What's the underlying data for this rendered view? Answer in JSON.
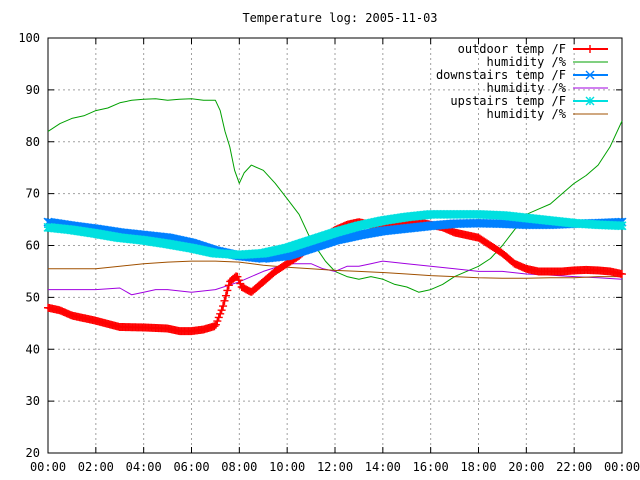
{
  "chart_data": {
    "type": "line",
    "title": "Temperature log: 2005-11-03",
    "xlabel": "",
    "ylabel": "",
    "xlim": [
      0,
      24
    ],
    "ylim": [
      20,
      100
    ],
    "grid": true,
    "legend_position": "top-right",
    "x_ticks": [
      "00:00",
      "02:00",
      "04:00",
      "06:00",
      "08:00",
      "10:00",
      "12:00",
      "14:00",
      "16:00",
      "18:00",
      "20:00",
      "22:00",
      "00:00"
    ],
    "y_ticks": [
      "20",
      "30",
      "40",
      "50",
      "60",
      "70",
      "80",
      "90",
      "100"
    ],
    "series": [
      {
        "name": "outdoor temp /F",
        "color": "#ff0000",
        "marker": "plus",
        "style": "thick",
        "points": [
          [
            0,
            48
          ],
          [
            0.5,
            47.5
          ],
          [
            1,
            46.5
          ],
          [
            2,
            45.5
          ],
          [
            3,
            44.3
          ],
          [
            4,
            44.2
          ],
          [
            5,
            44
          ],
          [
            5.5,
            43.5
          ],
          [
            6,
            43.5
          ],
          [
            6.5,
            43.8
          ],
          [
            7,
            44.5
          ],
          [
            7.3,
            48
          ],
          [
            7.6,
            53
          ],
          [
            7.9,
            54.2
          ],
          [
            8.1,
            52
          ],
          [
            8.5,
            51
          ],
          [
            9,
            53
          ],
          [
            9.5,
            55
          ],
          [
            10,
            56.5
          ],
          [
            10.5,
            58
          ],
          [
            11,
            60
          ],
          [
            11.5,
            61.5
          ],
          [
            12,
            63
          ],
          [
            12.5,
            64
          ],
          [
            13,
            64.5
          ],
          [
            13.5,
            64
          ],
          [
            14,
            63.5
          ],
          [
            14.5,
            64
          ],
          [
            15,
            64.5
          ],
          [
            15.5,
            64.5
          ],
          [
            16,
            64
          ],
          [
            16.5,
            63.5
          ],
          [
            17,
            62.5
          ],
          [
            17.5,
            62
          ],
          [
            18,
            61.5
          ],
          [
            18.5,
            60
          ],
          [
            19,
            58.5
          ],
          [
            19.5,
            56.5
          ],
          [
            20,
            55.5
          ],
          [
            20.5,
            55
          ],
          [
            21,
            55
          ],
          [
            21.5,
            55
          ],
          [
            22,
            55.2
          ],
          [
            22.5,
            55.3
          ],
          [
            23,
            55.2
          ],
          [
            23.5,
            55
          ],
          [
            24,
            54.5
          ]
        ]
      },
      {
        "name": "humidity /%",
        "color": "#00a000",
        "marker": "none",
        "style": "thin",
        "points": [
          [
            0,
            82
          ],
          [
            0.5,
            83.5
          ],
          [
            1,
            84.5
          ],
          [
            1.5,
            85
          ],
          [
            2,
            86
          ],
          [
            2.5,
            86.5
          ],
          [
            3,
            87.5
          ],
          [
            3.5,
            88
          ],
          [
            4,
            88.2
          ],
          [
            4.5,
            88.3
          ],
          [
            5,
            88
          ],
          [
            5.5,
            88.2
          ],
          [
            6,
            88.3
          ],
          [
            6.5,
            88
          ],
          [
            7,
            88
          ],
          [
            7.2,
            86
          ],
          [
            7.4,
            82
          ],
          [
            7.6,
            79
          ],
          [
            7.8,
            74.5
          ],
          [
            8,
            72
          ],
          [
            8.2,
            74
          ],
          [
            8.5,
            75.5
          ],
          [
            9,
            74.5
          ],
          [
            9.5,
            72
          ],
          [
            10,
            69
          ],
          [
            10.5,
            66
          ],
          [
            11,
            61
          ],
          [
            11.3,
            59
          ],
          [
            11.6,
            57
          ],
          [
            12,
            55
          ],
          [
            12.5,
            54
          ],
          [
            13,
            53.5
          ],
          [
            13.5,
            54
          ],
          [
            14,
            53.5
          ],
          [
            14.5,
            52.5
          ],
          [
            15,
            52
          ],
          [
            15.5,
            51
          ],
          [
            16,
            51.5
          ],
          [
            16.5,
            52.5
          ],
          [
            17,
            54
          ],
          [
            17.5,
            55
          ],
          [
            18,
            56
          ],
          [
            18.5,
            57.5
          ],
          [
            19,
            60
          ],
          [
            19.5,
            63
          ],
          [
            20,
            66
          ],
          [
            20.5,
            67
          ],
          [
            21,
            68
          ],
          [
            21.5,
            70
          ],
          [
            22,
            72
          ],
          [
            22.5,
            73.5
          ],
          [
            23,
            75.5
          ],
          [
            23.5,
            79
          ],
          [
            24,
            84
          ]
        ]
      },
      {
        "name": "downstairs temp /F",
        "color": "#0080ff",
        "marker": "cross",
        "style": "thick",
        "points": [
          [
            0,
            64.5
          ],
          [
            1,
            63.8
          ],
          [
            2,
            63.2
          ],
          [
            3,
            62.5
          ],
          [
            4,
            62
          ],
          [
            5,
            61.5
          ],
          [
            6,
            60.5
          ],
          [
            7,
            59
          ],
          [
            8,
            58
          ],
          [
            9,
            57.5
          ],
          [
            10,
            58
          ],
          [
            11,
            59.5
          ],
          [
            12,
            61
          ],
          [
            13,
            62
          ],
          [
            14,
            62.8
          ],
          [
            15,
            63.3
          ],
          [
            16,
            63.8
          ],
          [
            17,
            64.2
          ],
          [
            18,
            64.3
          ],
          [
            19,
            64.2
          ],
          [
            20,
            64
          ],
          [
            21,
            64
          ],
          [
            22,
            64.2
          ],
          [
            23,
            64.3
          ],
          [
            24,
            64.5
          ]
        ]
      },
      {
        "name": "humidity /%",
        "color": "#a000e0",
        "marker": "none",
        "style": "thin",
        "points": [
          [
            0,
            51.5
          ],
          [
            1,
            51.5
          ],
          [
            2,
            51.5
          ],
          [
            3,
            51.8
          ],
          [
            3.5,
            50.5
          ],
          [
            4,
            51
          ],
          [
            4.5,
            51.5
          ],
          [
            5,
            51.5
          ],
          [
            6,
            51
          ],
          [
            7,
            51.5
          ],
          [
            8,
            53
          ],
          [
            9,
            55
          ],
          [
            10,
            56.5
          ],
          [
            11,
            56.5
          ],
          [
            11.5,
            55.5
          ],
          [
            12,
            55
          ],
          [
            12.5,
            56
          ],
          [
            13,
            56
          ],
          [
            13.5,
            56.5
          ],
          [
            14,
            57
          ],
          [
            15,
            56.5
          ],
          [
            16,
            56
          ],
          [
            17,
            55.5
          ],
          [
            18,
            55
          ],
          [
            19,
            55
          ],
          [
            20,
            54.5
          ],
          [
            21,
            54.3
          ],
          [
            22,
            54
          ],
          [
            23,
            53.8
          ],
          [
            24,
            53.5
          ]
        ]
      },
      {
        "name": "upstairs temp /F",
        "color": "#00e0e0",
        "marker": "star",
        "style": "thick",
        "points": [
          [
            0,
            63.5
          ],
          [
            1,
            63
          ],
          [
            2,
            62.3
          ],
          [
            3,
            61.5
          ],
          [
            4,
            61
          ],
          [
            5,
            60.3
          ],
          [
            6,
            59.5
          ],
          [
            7,
            58.5
          ],
          [
            8,
            58.2
          ],
          [
            9,
            58.5
          ],
          [
            10,
            59.5
          ],
          [
            11,
            61
          ],
          [
            12,
            62.5
          ],
          [
            13,
            63.8
          ],
          [
            14,
            64.8
          ],
          [
            15,
            65.5
          ],
          [
            16,
            66
          ],
          [
            17,
            66
          ],
          [
            18,
            66
          ],
          [
            19,
            65.8
          ],
          [
            20,
            65.3
          ],
          [
            21,
            64.8
          ],
          [
            22,
            64.3
          ],
          [
            23,
            64
          ],
          [
            24,
            63.8
          ]
        ]
      },
      {
        "name": "humidity /%",
        "color": "#a05000",
        "marker": "none",
        "style": "thin",
        "points": [
          [
            0,
            55.5
          ],
          [
            1,
            55.5
          ],
          [
            2,
            55.5
          ],
          [
            3,
            56
          ],
          [
            4,
            56.5
          ],
          [
            5,
            56.8
          ],
          [
            6,
            57
          ],
          [
            7,
            57
          ],
          [
            8,
            56.8
          ],
          [
            9,
            56.2
          ],
          [
            10,
            55.8
          ],
          [
            11,
            55.5
          ],
          [
            12,
            55.2
          ],
          [
            13,
            55
          ],
          [
            14,
            54.8
          ],
          [
            15,
            54.5
          ],
          [
            16,
            54.2
          ],
          [
            17,
            54
          ],
          [
            18,
            53.8
          ],
          [
            19,
            53.7
          ],
          [
            20,
            53.7
          ],
          [
            21,
            53.8
          ],
          [
            22,
            53.8
          ],
          [
            23,
            54
          ],
          [
            24,
            54
          ]
        ]
      }
    ]
  }
}
